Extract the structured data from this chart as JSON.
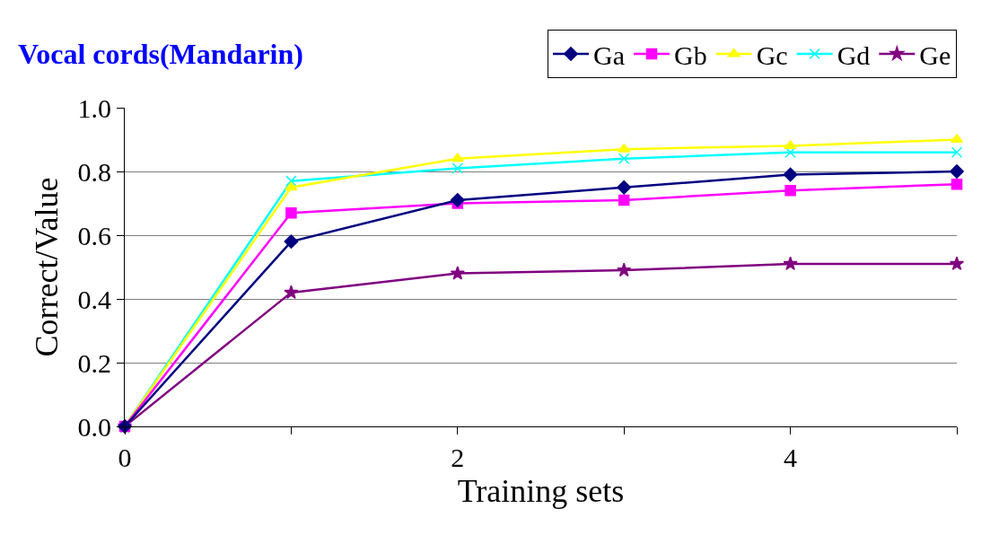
{
  "chart_data": {
    "type": "line",
    "title": "Vocal cords(Mandarin)",
    "xlabel": "Training sets",
    "ylabel": "Correct/Value",
    "x": [
      0,
      1,
      2,
      3,
      4,
      5
    ],
    "series": [
      {
        "name": "Ga",
        "color": "#000080",
        "marker": "diamond",
        "values": [
          0,
          0.58,
          0.71,
          0.75,
          0.79,
          0.8
        ]
      },
      {
        "name": "Gb",
        "color": "#ff00ff",
        "marker": "square",
        "values": [
          0,
          0.67,
          0.7,
          0.71,
          0.74,
          0.76
        ]
      },
      {
        "name": "Gc",
        "color": "#ffff00",
        "marker": "triangle",
        "values": [
          0,
          0.75,
          0.84,
          0.87,
          0.88,
          0.9
        ]
      },
      {
        "name": "Gd",
        "color": "#00ffff",
        "marker": "cross",
        "values": [
          0,
          0.77,
          0.81,
          0.84,
          0.86,
          0.86
        ]
      },
      {
        "name": "Ge",
        "color": "#800080",
        "marker": "star",
        "values": [
          0,
          0.42,
          0.48,
          0.49,
          0.51,
          0.51
        ]
      }
    ],
    "xlim": [
      0,
      5
    ],
    "xticks": [
      0,
      {
        "value": 1,
        "label": null
      },
      2,
      {
        "value": 3,
        "label": null
      },
      4,
      {
        "value": 5,
        "label": null
      }
    ],
    "ylim": [
      0,
      1.0
    ],
    "yticks": [
      {
        "value": 0,
        "label": "0.0"
      },
      {
        "value": 0.2,
        "label": "0.2"
      },
      {
        "value": 0.4,
        "label": "0.4"
      },
      {
        "value": 0.6,
        "label": "0.6"
      },
      {
        "value": 0.8,
        "label": "0.8"
      },
      {
        "value": 1.0,
        "label": "1.0"
      }
    ],
    "grid": "y",
    "legend": "top right",
    "line_style": "solid"
  }
}
